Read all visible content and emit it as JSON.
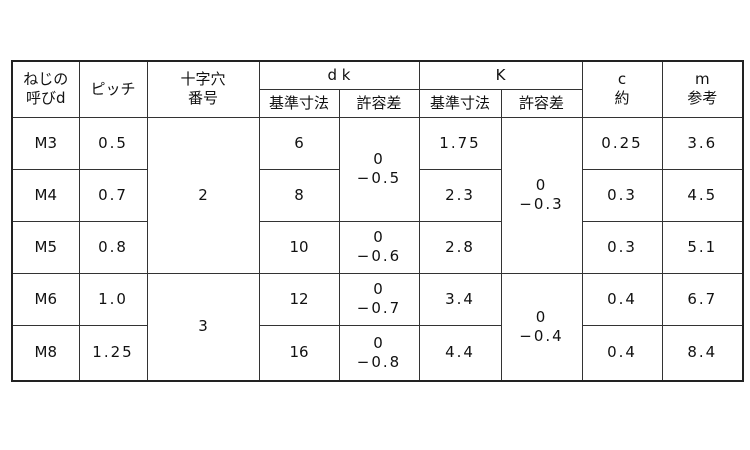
{
  "headers": {
    "nominal": [
      "ねじの",
      "呼びd"
    ],
    "pitch": "ピッチ",
    "cross": [
      "十字穴",
      "番号"
    ],
    "dk": "d k",
    "k": "K",
    "c": [
      "c",
      "約"
    ],
    "m": [
      "m",
      "参考"
    ],
    "basic": "基準寸法",
    "tolerance": "許容差"
  },
  "rows": [
    {
      "d": "M3",
      "pitch": "0.5",
      "dk": "6",
      "k": "1.75",
      "c": "0.25",
      "m": "3.6"
    },
    {
      "d": "M4",
      "pitch": "0.7",
      "dk": "8",
      "k": "2.3",
      "c": "0.3",
      "m": "4.5"
    },
    {
      "d": "M5",
      "pitch": "0.8",
      "dk": "10",
      "k": "2.8",
      "c": "0.3",
      "m": "5.1"
    },
    {
      "d": "M6",
      "pitch": "1.0",
      "dk": "12",
      "k": "3.4",
      "c": "0.4",
      "m": "6.7"
    },
    {
      "d": "M8",
      "pitch": "1.25",
      "dk": "16",
      "k": "4.4",
      "c": "0.4",
      "m": "8.4"
    }
  ],
  "cross_numbers": [
    "2",
    "3"
  ],
  "dk_tolerances": [
    [
      "0",
      "−0.5"
    ],
    [
      "0",
      "−0.6"
    ],
    [
      "0",
      "−0.7"
    ],
    [
      "0",
      "−0.8"
    ]
  ],
  "k_tolerances": [
    [
      "0",
      "−0.3"
    ],
    [
      "0",
      "−0.4"
    ]
  ]
}
